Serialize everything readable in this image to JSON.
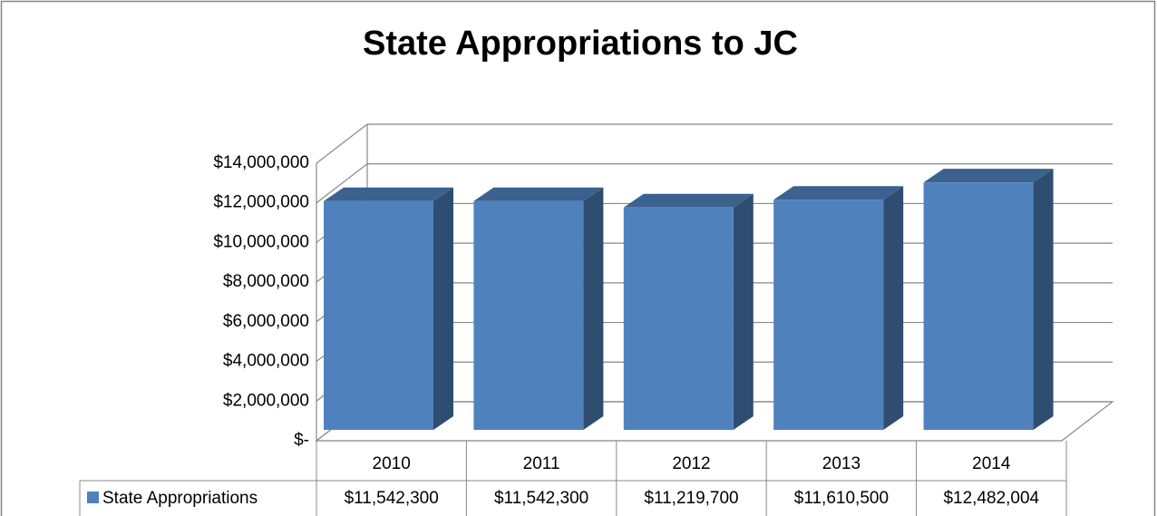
{
  "chart_data": {
    "type": "bar3d",
    "title": "State Appropriations to JC",
    "categories": [
      "2010",
      "2011",
      "2012",
      "2013",
      "2014"
    ],
    "series": [
      {
        "name": "State Appropriations",
        "color": "#4f81bd",
        "values": [
          11542300,
          11542300,
          11219700,
          11610500,
          12482004
        ],
        "value_labels": [
          "$11,542,300",
          "$11,542,300",
          "$11,219,700",
          "$11,610,500",
          "$12,482,004"
        ]
      }
    ],
    "ylim": [
      0,
      14000000
    ],
    "yticks": [
      {
        "value": 0,
        "label": "$-"
      },
      {
        "value": 2000000,
        "label": "$2,000,000"
      },
      {
        "value": 4000000,
        "label": "$4,000,000"
      },
      {
        "value": 6000000,
        "label": "$6,000,000"
      },
      {
        "value": 8000000,
        "label": "$8,000,000"
      },
      {
        "value": 10000000,
        "label": "$10,000,000"
      },
      {
        "value": 12000000,
        "label": "$12,000,000"
      },
      {
        "value": 14000000,
        "label": "$14,000,000"
      }
    ],
    "grid": true,
    "data_table": true
  }
}
